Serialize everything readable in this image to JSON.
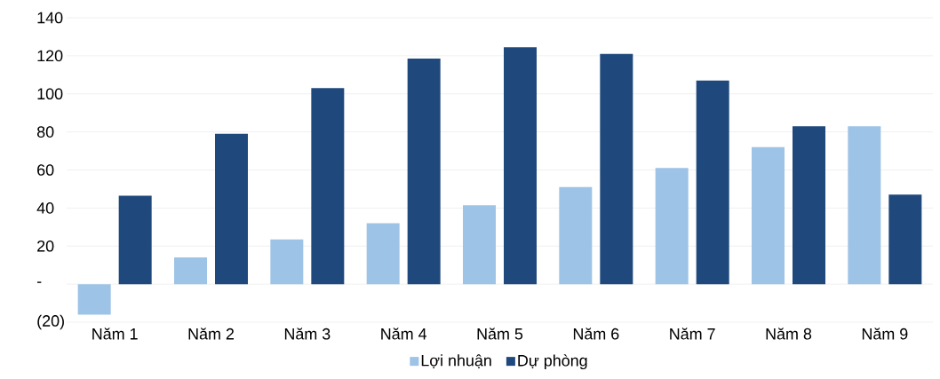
{
  "chart_data": {
    "type": "bar",
    "categories": [
      "Năm 1",
      "Năm 2",
      "Năm 3",
      "Năm 4",
      "Năm 5",
      "Năm 6",
      "Năm 7",
      "Năm 8",
      "Năm 9"
    ],
    "series": [
      {
        "name": "Lợi nhuận",
        "color": "#9dc3e6",
        "values": [
          -16,
          14,
          23.5,
          32,
          41.5,
          51,
          61,
          72,
          83
        ]
      },
      {
        "name": "Dự phòng",
        "color": "#1f497d",
        "values": [
          46.5,
          79,
          103,
          118.5,
          124.5,
          121,
          107,
          83,
          47
        ]
      }
    ],
    "ylim": [
      -20,
      140
    ],
    "yticks": [
      {
        "value": -20,
        "label": "(20)"
      },
      {
        "value": 0,
        "label": "-"
      },
      20,
      40,
      60,
      80,
      100,
      120,
      140
    ],
    "grid": "y",
    "legend": "bottom"
  }
}
